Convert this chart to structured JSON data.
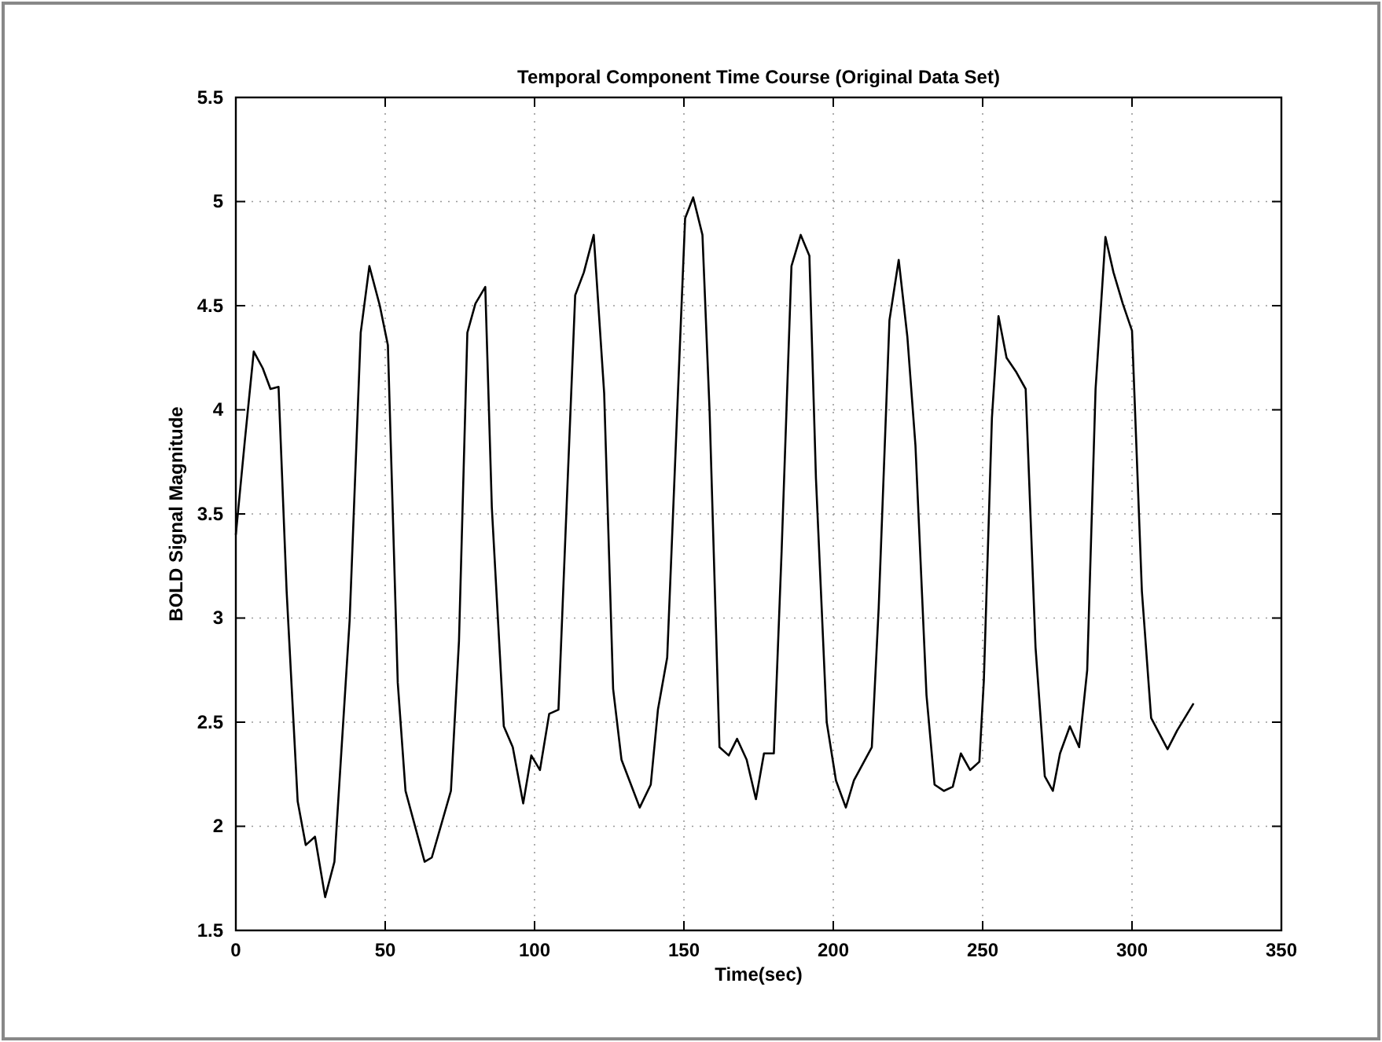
{
  "chart_data": {
    "type": "line",
    "title": "Temporal Component Time Course (Original Data Set)",
    "xlabel": "Time(sec)",
    "ylabel": "BOLD Signal Magnitude",
    "xlim": [
      0,
      350
    ],
    "xticks": [
      0,
      50,
      100,
      150,
      200,
      250,
      300,
      350
    ],
    "ylim": [
      1.5,
      5.5
    ],
    "yticks": [
      1.5,
      2,
      2.5,
      3,
      3.5,
      4,
      4.5,
      5,
      5.5
    ],
    "grid": true,
    "line_style": "solid",
    "series": [
      {
        "color": "#000000",
        "x": [
          0,
          3,
          6,
          9,
          11.6,
          14.3,
          17,
          20.7,
          23.4,
          26.5,
          29.9,
          33,
          38.1,
          41.8,
          44.7,
          48.2,
          50.9,
          54.2,
          56.8,
          63.2,
          65.6,
          72,
          74.7,
          77.5,
          80.2,
          83.5,
          85.7,
          89.7,
          92.7,
          96.2,
          98.9,
          101.8,
          104.9,
          108,
          110.4,
          113.6,
          116.5,
          119.8,
          123.3,
          126.3,
          129.1,
          135.2,
          138.9,
          141.3,
          144.4,
          147.6,
          150.4,
          153.1,
          156.2,
          158.6,
          161.9,
          165,
          167.8,
          171,
          174.1,
          176.8,
          180.1,
          182.7,
          186,
          189.1,
          192,
          194.2,
          197.8,
          200.9,
          204.2,
          206.9,
          212.9,
          215.2,
          218.8,
          221.9,
          224.8,
          227.5,
          231.2,
          233.9,
          237,
          240,
          242.7,
          245.8,
          248.9,
          250.4,
          253.1,
          255.3,
          258,
          261.3,
          264.4,
          267.7,
          270.8,
          273.5,
          275.9,
          279.2,
          282.3,
          285,
          287.8,
          291.1,
          293.8,
          296.9,
          300,
          303.3,
          306.4,
          311.9,
          315.1,
          320.6
        ],
        "values": [
          3.4,
          3.85,
          4.28,
          4.2,
          4.1,
          4.11,
          3.13,
          2.12,
          1.91,
          1.95,
          1.66,
          1.83,
          2.99,
          4.37,
          4.69,
          4.5,
          4.31,
          2.69,
          2.17,
          1.83,
          1.85,
          2.17,
          2.89,
          4.37,
          4.51,
          4.59,
          3.53,
          2.48,
          2.38,
          2.11,
          2.34,
          2.27,
          2.54,
          2.56,
          3.42,
          4.55,
          4.66,
          4.84,
          4.08,
          2.66,
          2.32,
          2.09,
          2.2,
          2.56,
          2.81,
          3.94,
          4.92,
          5.02,
          4.84,
          3.99,
          2.38,
          2.34,
          2.42,
          2.32,
          2.13,
          2.35,
          2.35,
          3.32,
          4.69,
          4.84,
          4.74,
          3.67,
          2.5,
          2.22,
          2.09,
          2.22,
          2.38,
          3.05,
          4.43,
          4.72,
          4.35,
          3.83,
          2.63,
          2.2,
          2.17,
          2.19,
          2.35,
          2.27,
          2.31,
          2.7,
          3.96,
          4.45,
          4.25,
          4.18,
          4.1,
          2.86,
          2.24,
          2.17,
          2.35,
          2.48,
          2.38,
          2.75,
          4.1,
          4.83,
          4.66,
          4.51,
          4.38,
          3.13,
          2.52,
          2.37,
          2.46,
          2.59
        ]
      }
    ]
  }
}
